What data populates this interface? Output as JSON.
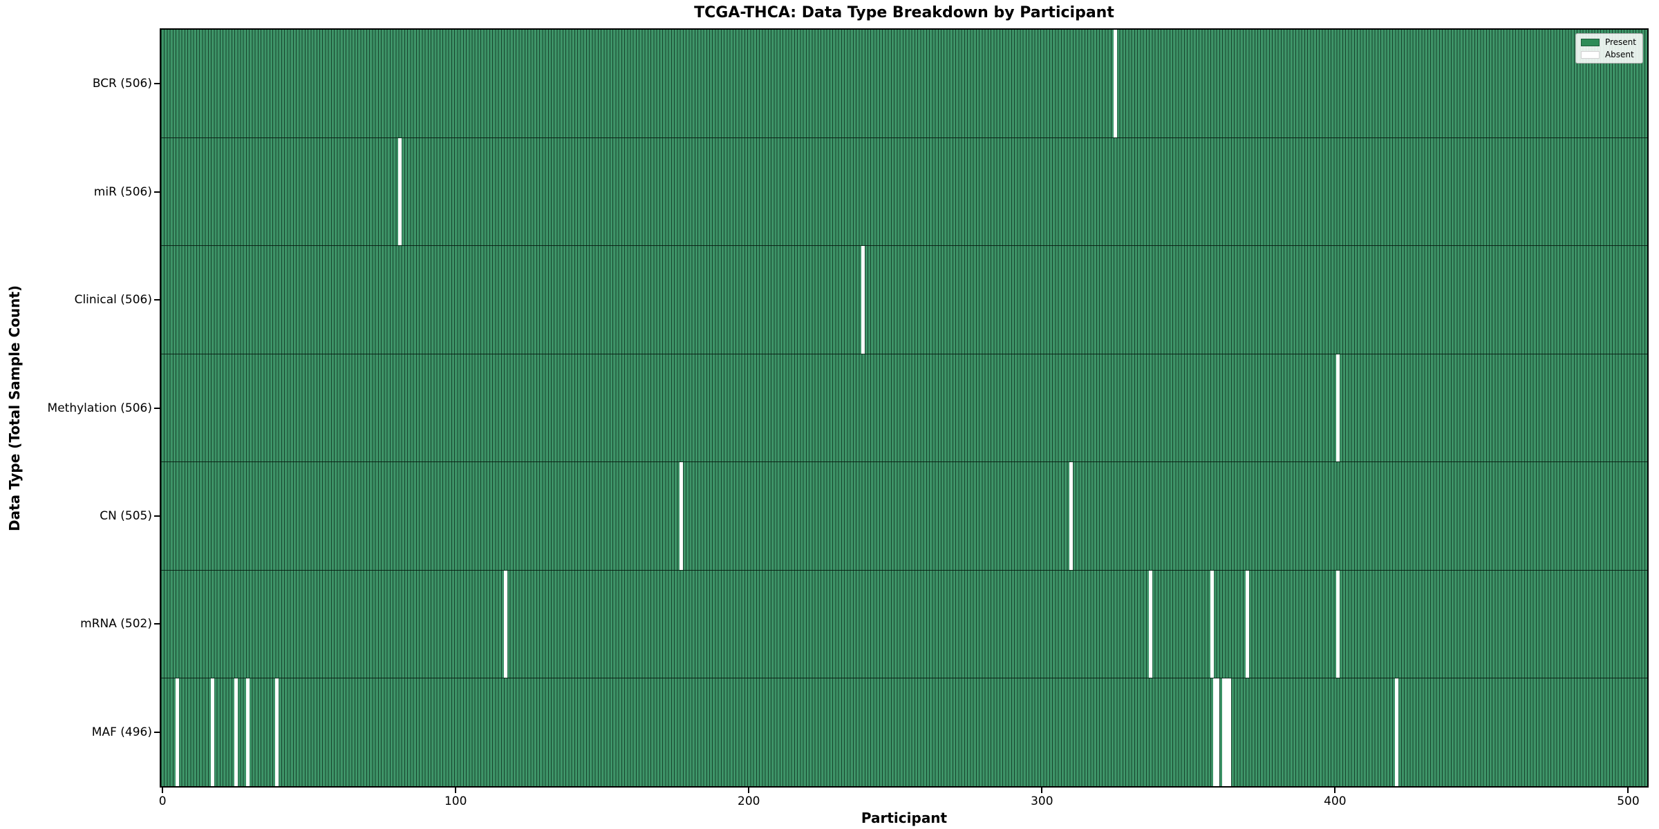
{
  "chart_data": {
    "type": "heatmap",
    "title": "TCGA-THCA: Data Type Breakdown by Participant",
    "xlabel": "Participant",
    "ylabel": "Data Type (Total Sample Count)",
    "x_ticks": [
      0,
      100,
      200,
      300,
      400,
      500
    ],
    "n_participants": 507,
    "xlim": [
      -0.5,
      506.5
    ],
    "grid": false,
    "legend_position": "upper right",
    "legend": [
      {
        "label": "Present",
        "color": "#2e8b57"
      },
      {
        "label": "Absent",
        "color": "#ffffff"
      }
    ],
    "colors": {
      "present_fill": "#3e9468",
      "bar_edge": "#16432c",
      "absent": "#ffffff",
      "row_separator": "#05190f",
      "spine": "#000000"
    },
    "rows": [
      {
        "label": "BCR (506)",
        "name": "BCR",
        "total_present": 506,
        "absent_participants": [
          325
        ]
      },
      {
        "label": "miR (506)",
        "name": "miR",
        "total_present": 506,
        "absent_participants": [
          81
        ]
      },
      {
        "label": "Clinical (506)",
        "name": "Clinical",
        "total_present": 506,
        "absent_participants": [
          239
        ]
      },
      {
        "label": "Methylation (506)",
        "name": "Methylation",
        "total_present": 506,
        "absent_participants": [
          401
        ]
      },
      {
        "label": "CN (505)",
        "name": "CN",
        "total_present": 505,
        "absent_participants": [
          177,
          310
        ]
      },
      {
        "label": "mRNA (502)",
        "name": "mRNA",
        "total_present": 502,
        "absent_participants": [
          117,
          337,
          358,
          370,
          401
        ]
      },
      {
        "label": "MAF (496)",
        "name": "MAF",
        "total_present": 496,
        "absent_participants": [
          5,
          17,
          25,
          29,
          39,
          359,
          360,
          362,
          363,
          364,
          421
        ]
      }
    ]
  }
}
